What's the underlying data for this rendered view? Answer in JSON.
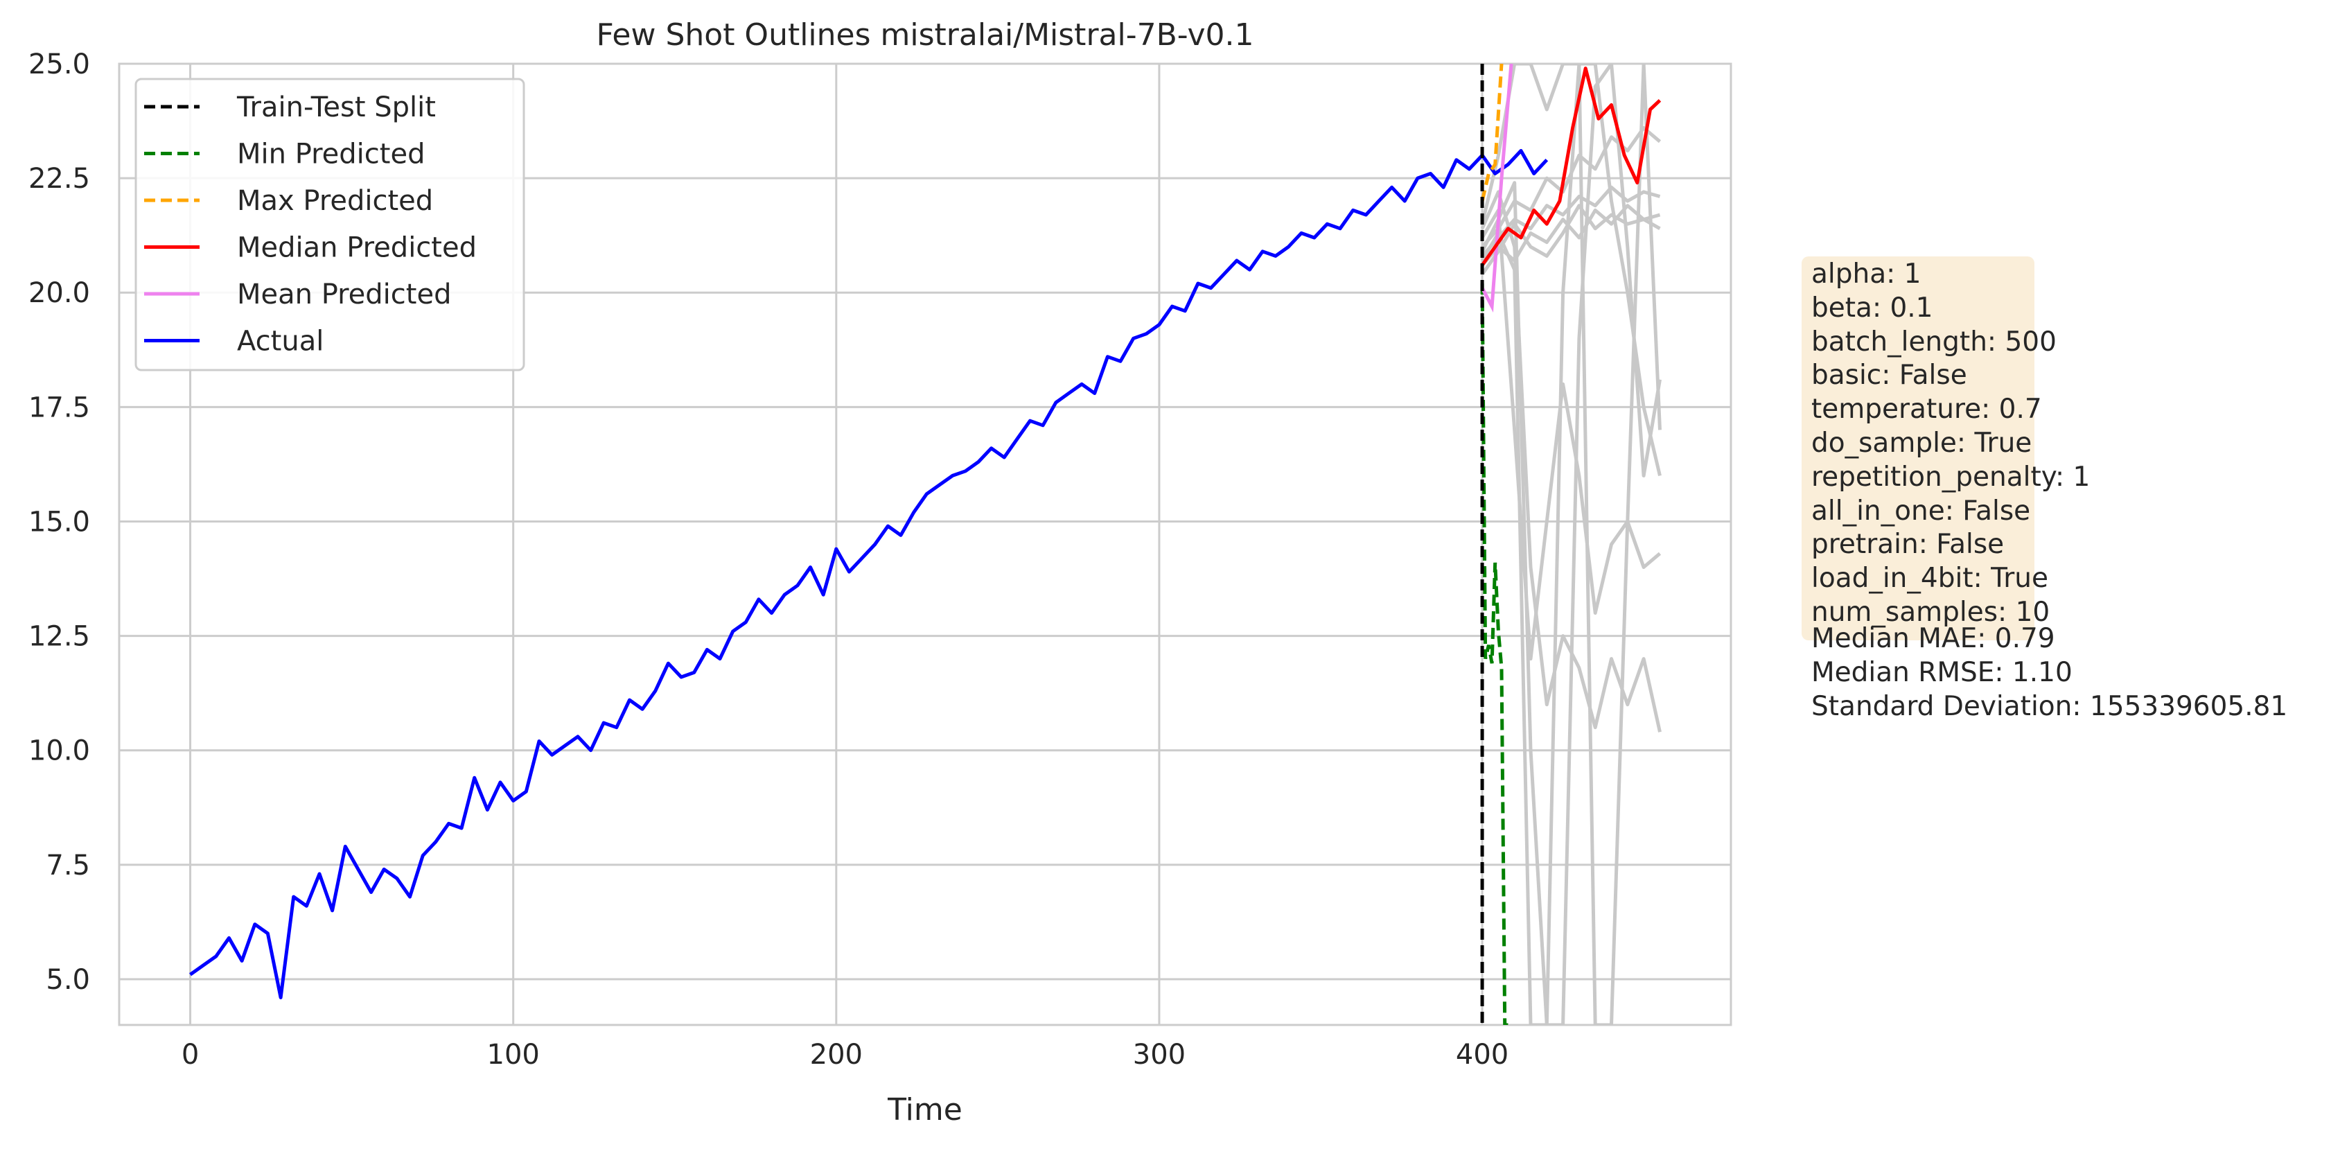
{
  "chart_data": {
    "type": "line",
    "title": "Few Shot Outlines mistralai/Mistral-7B-v0.1",
    "xlabel": "Time",
    "ylabel": "",
    "xlim": [
      -22,
      477
    ],
    "ylim": [
      4,
      25
    ],
    "xticks": [
      0,
      100,
      200,
      300,
      400
    ],
    "yticks": [
      5.0,
      7.5,
      10.0,
      12.5,
      15.0,
      17.5,
      20.0,
      22.5,
      25.0
    ],
    "grid": true,
    "legend_position": "top-left",
    "split_x": 400,
    "legend": [
      {
        "label": "Train-Test Split",
        "color": "#000000",
        "dashed": true
      },
      {
        "label": "Min Predicted",
        "color": "#008000",
        "dashed": true
      },
      {
        "label": "Max Predicted",
        "color": "#ffa500",
        "dashed": true
      },
      {
        "label": "Median Predicted",
        "color": "#ff0000",
        "dashed": false
      },
      {
        "label": "Mean Predicted",
        "color": "#ee82ee",
        "dashed": false
      },
      {
        "label": "Actual",
        "color": "#0000ff",
        "dashed": false
      }
    ],
    "actual": {
      "color": "#0000ff",
      "x_start": 0,
      "x_step": 4,
      "values": [
        5.1,
        5.3,
        5.5,
        5.9,
        5.4,
        6.2,
        6.0,
        4.6,
        6.8,
        6.6,
        7.3,
        6.5,
        7.9,
        7.4,
        6.9,
        7.4,
        7.2,
        6.8,
        7.7,
        8.0,
        8.4,
        8.3,
        9.4,
        8.7,
        9.3,
        8.9,
        9.1,
        10.2,
        9.9,
        10.1,
        10.3,
        10.0,
        10.6,
        10.5,
        11.1,
        10.9,
        11.3,
        11.9,
        11.6,
        11.7,
        12.2,
        12.0,
        12.6,
        12.8,
        13.3,
        13.0,
        13.4,
        13.6,
        14.0,
        13.4,
        14.4,
        13.9,
        14.2,
        14.5,
        14.9,
        14.7,
        15.2,
        15.6,
        15.8,
        16.0,
        16.1,
        16.3,
        16.6,
        16.4,
        16.8,
        17.2,
        17.1,
        17.6,
        17.8,
        18.0,
        17.8,
        18.6,
        18.5,
        19.0,
        19.1,
        19.3,
        19.7,
        19.6,
        20.2,
        20.1,
        20.4,
        20.7,
        20.5,
        20.9,
        20.8,
        21.0,
        21.3,
        21.2,
        21.5,
        21.4,
        21.8,
        21.7,
        22.0,
        22.3,
        22.0,
        22.5,
        22.6,
        22.3,
        22.9,
        22.7,
        23.0,
        22.6,
        22.8,
        23.1,
        22.6,
        22.9
      ]
    },
    "median_predicted": {
      "color": "#ff0000",
      "x": [
        400,
        404,
        408,
        412,
        416,
        420,
        424,
        428,
        432,
        436,
        440,
        444,
        448,
        452,
        455
      ],
      "values": [
        20.6,
        21.0,
        21.4,
        21.2,
        21.8,
        21.5,
        22.0,
        23.6,
        24.9,
        23.8,
        24.1,
        23.0,
        22.4,
        24.0,
        24.2
      ]
    },
    "mean_predicted": {
      "color": "#ee82ee",
      "x": [
        400,
        403,
        406,
        409
      ],
      "values": [
        20.1,
        19.7,
        22.5,
        25.0
      ]
    },
    "max_predicted": {
      "color": "#ffa500",
      "x": [
        400,
        402,
        404,
        406
      ],
      "values": [
        22.0,
        22.6,
        22.8,
        25.0
      ]
    },
    "min_predicted": {
      "color": "#008000",
      "x": [
        400,
        401,
        402,
        403,
        404,
        405,
        406,
        407,
        408
      ],
      "values": [
        20.2,
        12.0,
        12.3,
        11.9,
        14.1,
        12.6,
        11.8,
        4.0,
        4.0
      ]
    },
    "sample_outlines": {
      "color": "#c8c8c8",
      "x_start": 400,
      "x_step": 5,
      "series": [
        [
          21.0,
          21.4,
          22.0,
          21.8,
          22.5,
          22.2,
          23.0,
          22.7,
          23.4,
          23.1,
          23.6,
          23.3
        ],
        [
          20.8,
          21.2,
          21.6,
          21.4,
          21.9,
          21.7,
          22.1,
          21.9,
          22.3,
          22.0,
          22.2,
          22.1
        ],
        [
          20.6,
          21.0,
          20.7,
          21.3,
          21.1,
          21.6,
          21.2,
          21.8,
          21.5,
          21.9,
          21.6,
          21.7
        ],
        [
          21.5,
          23.0,
          25.0,
          25.0,
          24.0,
          25.0,
          25.0,
          25.0,
          22.0,
          20.0,
          17.5,
          16.0
        ],
        [
          20.4,
          20.9,
          21.5,
          21.0,
          20.8,
          21.3,
          21.9,
          21.4,
          21.7,
          21.5,
          21.6,
          21.4
        ],
        [
          21.2,
          21.8,
          17.0,
          12.0,
          15.0,
          18.0,
          16.0,
          13.0,
          14.5,
          15.0,
          14.0,
          14.3
        ],
        [
          20.9,
          21.6,
          22.4,
          10.0,
          4.0,
          4.0,
          19.0,
          24.5,
          25.0,
          21.0,
          16.0,
          18.1
        ],
        [
          21.4,
          22.2,
          21.0,
          14.0,
          11.0,
          12.5,
          11.8,
          10.5,
          12.0,
          11.0,
          12.0,
          10.4
        ],
        [
          20.7,
          21.3,
          20.5,
          4.0,
          4.0,
          20.0,
          25.0,
          4.0,
          4.0,
          15.0,
          25.0,
          17.0
        ]
      ]
    }
  },
  "params_lines": [
    "alpha: 1",
    "beta: 0.1",
    "batch_length: 500",
    "basic: False",
    "temperature: 0.7",
    "do_sample: True",
    "repetition_penalty: 1",
    "all_in_one: False",
    "pretrain: False",
    "load_in_4bit: True",
    "num_samples: 10"
  ],
  "metrics_lines": [
    "Median MAE: 0.79",
    "Median RMSE: 1.10",
    "Standard Deviation: 155339605.81"
  ]
}
